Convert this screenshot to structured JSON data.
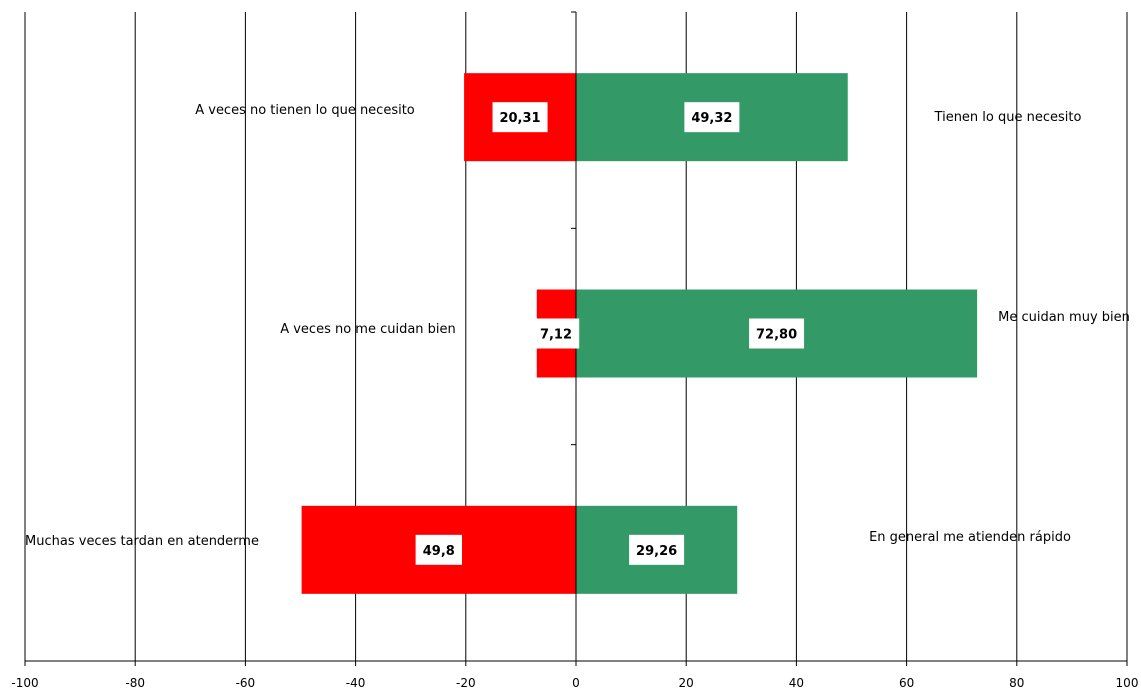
{
  "chart_data": {
    "type": "bar",
    "orientation": "horizontal-diverging",
    "xlim": [
      -100,
      100
    ],
    "x_ticks": [
      -100,
      -80,
      -60,
      -40,
      -20,
      0,
      20,
      40,
      60,
      80,
      100
    ],
    "grid": "vertical",
    "rows": [
      {
        "negative_label": "A veces no tienen lo que necesito",
        "negative_value": -20.31,
        "negative_data_label": "20,31",
        "positive_label": "Tienen lo que necesito",
        "positive_value": 49.32,
        "positive_data_label": "49,32"
      },
      {
        "negative_label": "A veces no me cuidan bien",
        "negative_value": -7.12,
        "negative_data_label": "7,12",
        "positive_label": "Me cuidan muy bien",
        "positive_value": 72.8,
        "positive_data_label": "72,80"
      },
      {
        "negative_label": "Muchas veces tardan en atenderme",
        "negative_value": -49.8,
        "negative_data_label": "49,8",
        "positive_label": "En general me atienden rápido",
        "positive_value": 29.26,
        "positive_data_label": "29,26"
      }
    ],
    "colors": {
      "negative": "#ff0000",
      "positive": "#339966"
    }
  }
}
